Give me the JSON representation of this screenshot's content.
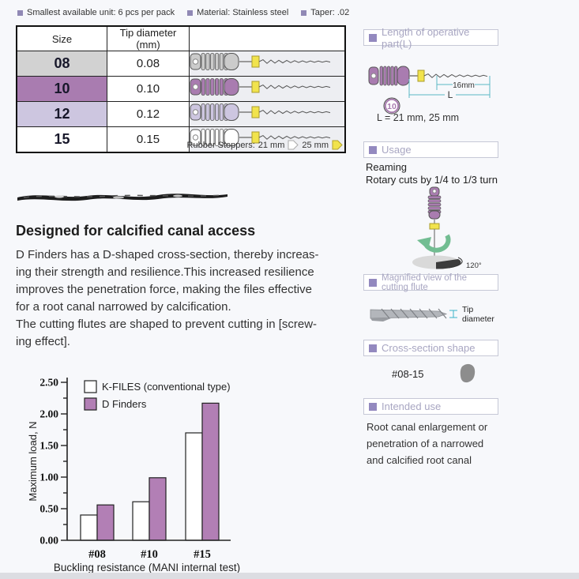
{
  "page": {
    "background": "#f7f8fb",
    "accent_purple": "#b27fb5",
    "bullet_color": "#9189b5"
  },
  "specs": {
    "items": [
      {
        "label": "Smallest available unit: 6 pcs per pack"
      },
      {
        "label": "Material: Stainless steel"
      },
      {
        "label": "Taper: .02"
      }
    ]
  },
  "table": {
    "headers": [
      "Size",
      "Tip diameter (mm)"
    ],
    "rows": [
      {
        "size": "08",
        "tip_diameter": "0.08",
        "row_color": "#d2d2d2",
        "handle_color": "#cbcbcb"
      },
      {
        "size": "10",
        "tip_diameter": "0.10",
        "row_color": "#a97cb0",
        "handle_color": "#a97cb0"
      },
      {
        "size": "12",
        "tip_diameter": "0.12",
        "row_color": "#cdc6e0",
        "handle_color": "#cdc6e0"
      },
      {
        "size": "15",
        "tip_diameter": "0.15",
        "row_color": "#ffffff",
        "handle_color": "#ffffff"
      }
    ],
    "stopper_color": "#f1e34d"
  },
  "rubber_stoppers": {
    "label": "Rubber Stoppers:",
    "size_1": "21 mm",
    "size_2": "25 mm"
  },
  "description": {
    "heading": "Designed for calcified canal access",
    "lines": [
      "D Finders has a D-shaped cross-section, thereby increas-",
      "ing their strength and resilience.This increased resilience",
      "improves the penetration force, making the files effective",
      "for a root canal narrowed by calcification.",
      "The cutting flutes are shaped to prevent cutting in [screw-",
      "ing effect]."
    ]
  },
  "chart_data": {
    "type": "bar",
    "categories": [
      "#08",
      "#10",
      "#15"
    ],
    "series": [
      {
        "name": "K-FILES (conventional type)",
        "color": "#ffffff",
        "values": [
          0.4,
          0.61,
          1.7
        ]
      },
      {
        "name": "D Finders",
        "color": "#b27fb5",
        "values": [
          0.56,
          0.99,
          2.17
        ]
      }
    ],
    "title": "",
    "xlabel": "Buckling resistance (MANI internal test)",
    "ylabel": "Maximum load, N",
    "ylim": [
      0,
      2.5
    ],
    "ytick_major": 0.5,
    "ytick_minor": 0.25,
    "grid": false,
    "legend_position": "top-left"
  },
  "sidebar": {
    "length_section": {
      "title": "Length of operative part(L)",
      "dim_16mm": "16mm",
      "dim_L": "L",
      "handle_size_label": "10",
      "length_note": "L = 21 mm, 25 mm"
    },
    "usage_section": {
      "title": "Usage",
      "line1": "Reaming",
      "line2": "Rotary cuts by 1/4 to 1/3 turn",
      "angle_label": "120°"
    },
    "flute_section": {
      "title": "Magnified view of the cutting flute",
      "tip_label_line1": "Tip",
      "tip_label_line2": "diameter"
    },
    "cross_section": {
      "title": "Cross-section shape",
      "range_label": "#08-15"
    },
    "intended_section": {
      "title": "Intended use",
      "lines": [
        "Root canal enlargement or",
        "penetration of a narrowed",
        "and calcified root canal"
      ]
    }
  }
}
